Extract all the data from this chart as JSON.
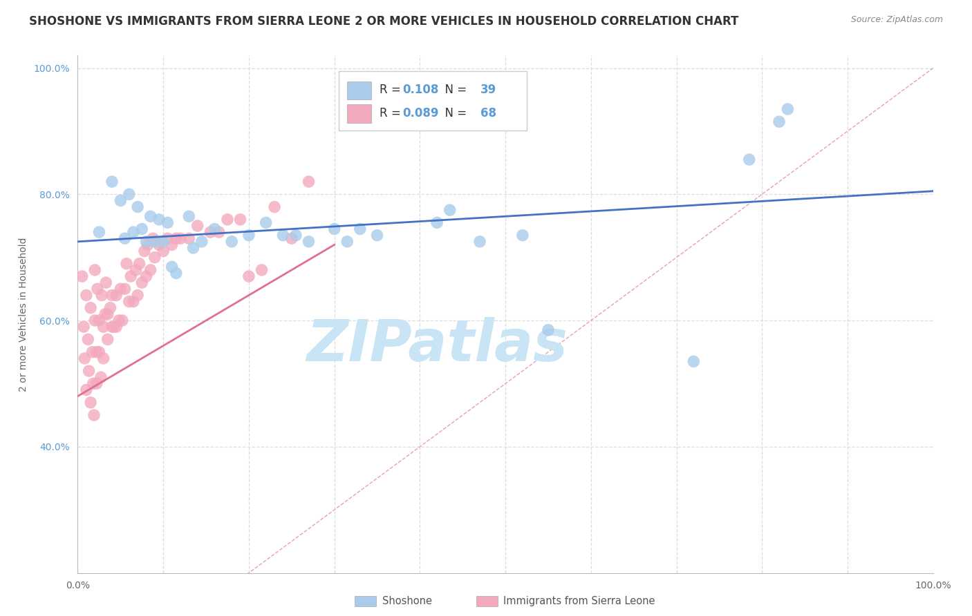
{
  "title": "SHOSHONE VS IMMIGRANTS FROM SIERRA LEONE 2 OR MORE VEHICLES IN HOUSEHOLD CORRELATION CHART",
  "source": "Source: ZipAtlas.com",
  "ylabel": "2 or more Vehicles in Household",
  "xlim": [
    0.0,
    1.0
  ],
  "ylim": [
    0.2,
    1.02
  ],
  "yticks": [
    0.4,
    0.6,
    0.8,
    1.0
  ],
  "ytick_labels": [
    "40.0%",
    "60.0%",
    "80.0%",
    "100.0%"
  ],
  "xtick_left_label": "0.0%",
  "xtick_right_label": "100.0%",
  "shoshone_R": 0.108,
  "shoshone_N": 39,
  "sierra_leone_R": 0.089,
  "sierra_leone_N": 68,
  "shoshone_color": "#A8CCEA",
  "sierra_leone_color": "#F4AABE",
  "shoshone_line_color": "#4472C4",
  "sierra_leone_line_color": "#E07090",
  "diagonal_color": "#E8B0B8",
  "grid_color": "#DDDDDD",
  "shoshone_points_x": [
    0.025,
    0.04,
    0.05,
    0.055,
    0.06,
    0.065,
    0.07,
    0.075,
    0.08,
    0.085,
    0.09,
    0.095,
    0.1,
    0.105,
    0.11,
    0.115,
    0.13,
    0.135,
    0.145,
    0.16,
    0.18,
    0.2,
    0.22,
    0.24,
    0.255,
    0.27,
    0.3,
    0.315,
    0.33,
    0.35,
    0.42,
    0.435,
    0.47,
    0.52,
    0.55,
    0.72,
    0.785,
    0.82,
    0.83
  ],
  "shoshone_points_y": [
    0.74,
    0.82,
    0.79,
    0.73,
    0.8,
    0.74,
    0.78,
    0.745,
    0.725,
    0.765,
    0.725,
    0.76,
    0.725,
    0.755,
    0.685,
    0.675,
    0.765,
    0.715,
    0.725,
    0.745,
    0.725,
    0.735,
    0.755,
    0.735,
    0.735,
    0.725,
    0.745,
    0.725,
    0.745,
    0.735,
    0.755,
    0.775,
    0.725,
    0.735,
    0.585,
    0.535,
    0.855,
    0.915,
    0.935
  ],
  "sierra_leone_points_x": [
    0.005,
    0.007,
    0.008,
    0.01,
    0.01,
    0.012,
    0.013,
    0.015,
    0.015,
    0.017,
    0.018,
    0.019,
    0.02,
    0.02,
    0.022,
    0.022,
    0.023,
    0.025,
    0.025,
    0.027,
    0.028,
    0.03,
    0.03,
    0.032,
    0.033,
    0.035,
    0.035,
    0.038,
    0.04,
    0.04,
    0.042,
    0.045,
    0.045,
    0.048,
    0.05,
    0.052,
    0.055,
    0.057,
    0.06,
    0.062,
    0.065,
    0.068,
    0.07,
    0.072,
    0.075,
    0.078,
    0.08,
    0.082,
    0.085,
    0.088,
    0.09,
    0.095,
    0.1,
    0.105,
    0.11,
    0.115,
    0.12,
    0.13,
    0.14,
    0.155,
    0.165,
    0.175,
    0.19,
    0.2,
    0.215,
    0.23,
    0.25,
    0.27
  ],
  "sierra_leone_points_y": [
    0.67,
    0.59,
    0.54,
    0.49,
    0.64,
    0.57,
    0.52,
    0.47,
    0.62,
    0.55,
    0.5,
    0.45,
    0.68,
    0.6,
    0.55,
    0.5,
    0.65,
    0.6,
    0.55,
    0.51,
    0.64,
    0.59,
    0.54,
    0.61,
    0.66,
    0.61,
    0.57,
    0.62,
    0.59,
    0.64,
    0.59,
    0.64,
    0.59,
    0.6,
    0.65,
    0.6,
    0.65,
    0.69,
    0.63,
    0.67,
    0.63,
    0.68,
    0.64,
    0.69,
    0.66,
    0.71,
    0.67,
    0.72,
    0.68,
    0.73,
    0.7,
    0.72,
    0.71,
    0.73,
    0.72,
    0.73,
    0.73,
    0.73,
    0.75,
    0.74,
    0.74,
    0.76,
    0.76,
    0.67,
    0.68,
    0.78,
    0.73,
    0.82
  ],
  "background_color": "#FFFFFF",
  "title_fontsize": 12,
  "watermark_text": "ZIPatlas",
  "watermark_color": "#C8E4F5",
  "watermark_fontsize": 60
}
